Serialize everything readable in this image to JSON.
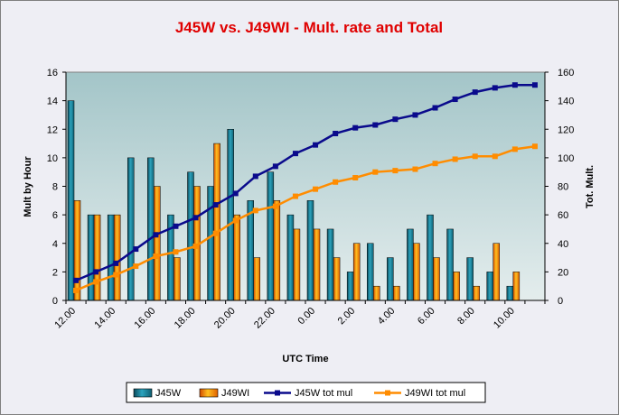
{
  "chart_data": {
    "type": "bar",
    "title": "J45W vs. J49WI  -  Mult. rate and Total",
    "xlabel": "UTC Time",
    "ylabel": "Mult by Hour",
    "y2label": "Tot. Mult.",
    "ylim": [
      0,
      16
    ],
    "y2lim": [
      0,
      160
    ],
    "yticks": [
      "0",
      "2",
      "4",
      "6",
      "8",
      "10",
      "12",
      "14",
      "16"
    ],
    "y2ticks": [
      "0",
      "20",
      "40",
      "60",
      "80",
      "100",
      "120",
      "140",
      "160"
    ],
    "xticks": [
      "12.00",
      "14.00",
      "16.00",
      "18.00",
      "20.00",
      "22.00",
      "0.00",
      "2.00",
      "4.00",
      "6.00",
      "8.00",
      "10.00"
    ],
    "hour_count": 24,
    "series": [
      {
        "name": "J45W",
        "kind": "bar",
        "axis": "left",
        "color": "#1d8fa8",
        "values": [
          14,
          6,
          6,
          10,
          10,
          6,
          9,
          8,
          12,
          7,
          9,
          6,
          7,
          5,
          2,
          4,
          3,
          5,
          6,
          5,
          3,
          2,
          1,
          0
        ]
      },
      {
        "name": "J49WI",
        "kind": "bar",
        "axis": "left",
        "color": "#f07f10",
        "values": [
          7,
          6,
          6,
          0,
          8,
          3,
          8,
          11,
          6,
          3,
          7,
          5,
          5,
          3,
          4,
          1,
          1,
          4,
          3,
          2,
          1,
          4,
          2,
          0
        ]
      },
      {
        "name": "J45W tot mul",
        "kind": "line",
        "axis": "right",
        "color": "#0a0a8c",
        "values": [
          14,
          20,
          26,
          36,
          46,
          52,
          58,
          67,
          75,
          87,
          94,
          103,
          109,
          117,
          121,
          123,
          127,
          130,
          135,
          141,
          146,
          149,
          151,
          151
        ]
      },
      {
        "name": "J49WI tot mul",
        "kind": "line",
        "axis": "right",
        "color": "#ff8c00",
        "values": [
          7,
          13,
          18,
          24,
          31,
          34,
          38,
          47,
          56,
          63,
          66,
          73,
          78,
          83,
          86,
          90,
          91,
          92,
          96,
          99,
          101,
          101,
          106,
          108
        ]
      }
    ],
    "legend": {
      "position": "bottom"
    },
    "grid": false
  }
}
